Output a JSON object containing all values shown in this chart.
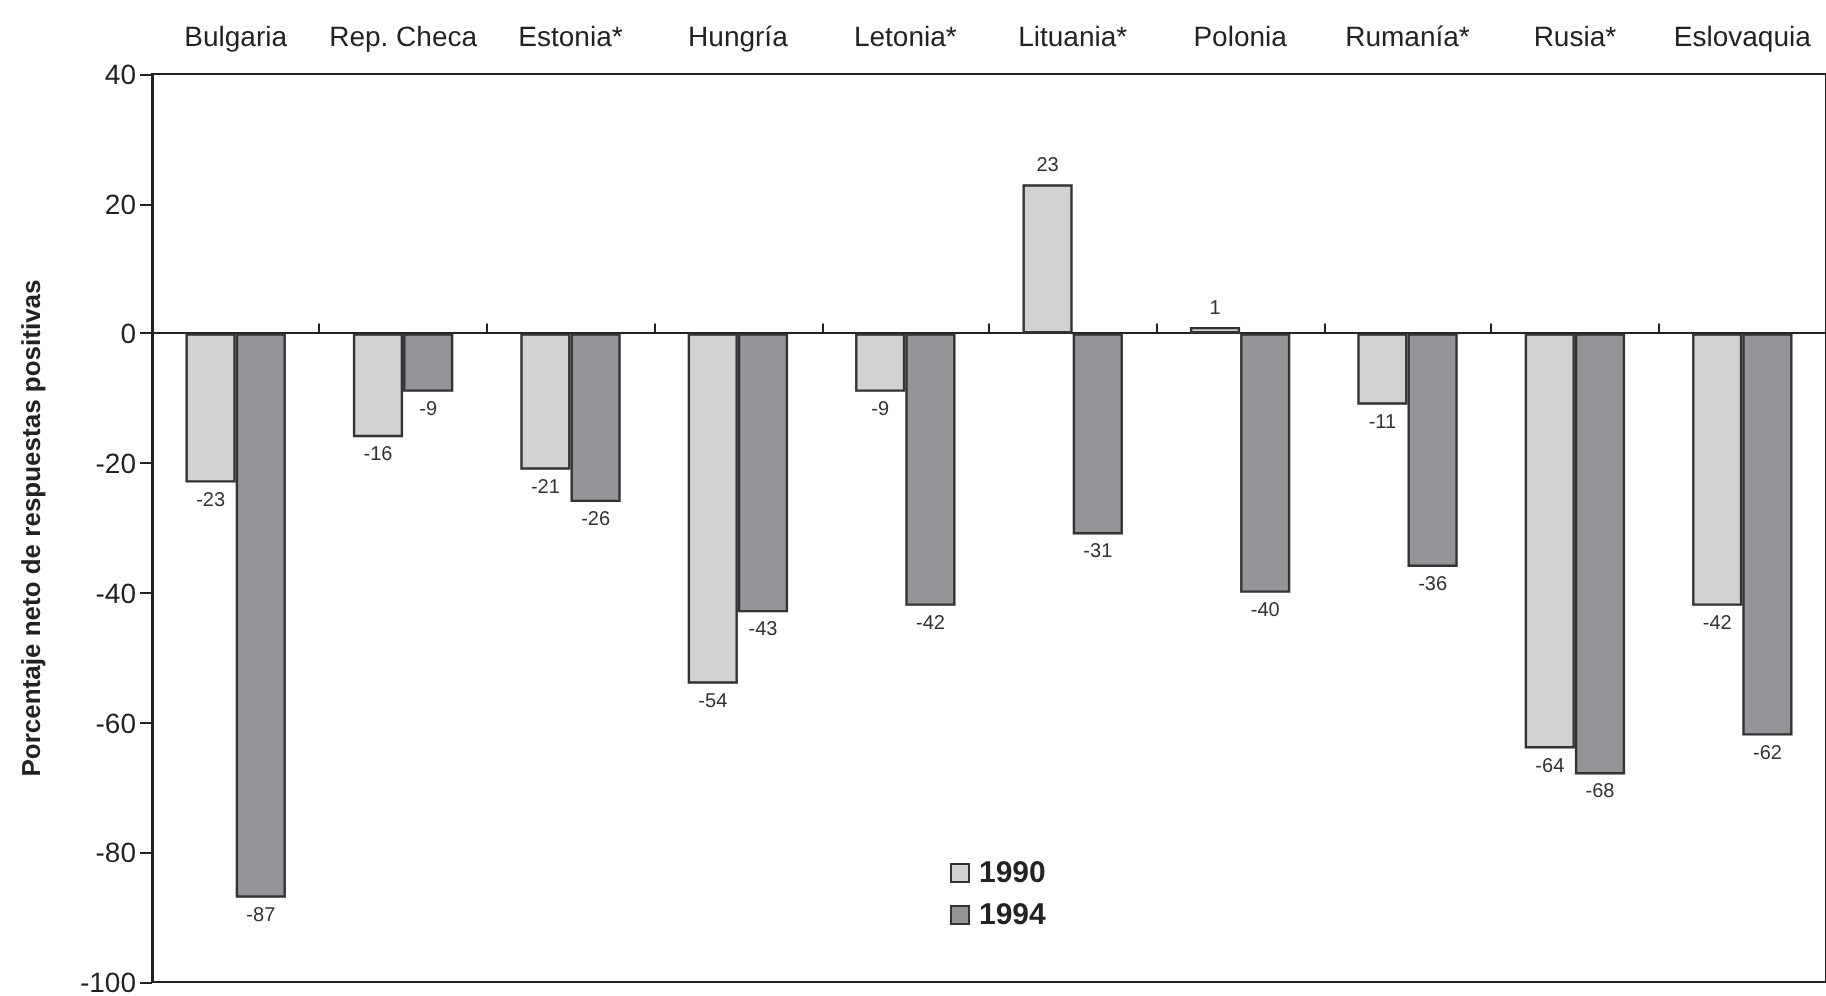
{
  "chart_data": {
    "type": "bar",
    "ylabel": "Porcentaje neto de respuestas positivas",
    "categories": [
      "Bulgaria",
      "Rep. Checa",
      "Estonia*",
      "Hungría",
      "Letonia*",
      "Lituania*",
      "Polonia",
      "Rumanía*",
      "Rusia*",
      "Eslovaquia"
    ],
    "series": [
      {
        "name": "1990",
        "color": "#d1d2d4",
        "values": [
          -23,
          -16,
          -21,
          -54,
          -9,
          23,
          1,
          -11,
          -64,
          -42
        ]
      },
      {
        "name": "1994",
        "color": "#939598",
        "values": [
          -87,
          -9,
          -26,
          -43,
          -42,
          -31,
          -40,
          -36,
          -68,
          -62
        ]
      }
    ],
    "ylim": [
      -100,
      40
    ],
    "yticks": [
      -100,
      -80,
      -60,
      -40,
      -20,
      0,
      20,
      40
    ],
    "data_labels": true,
    "legend": "bottom"
  }
}
